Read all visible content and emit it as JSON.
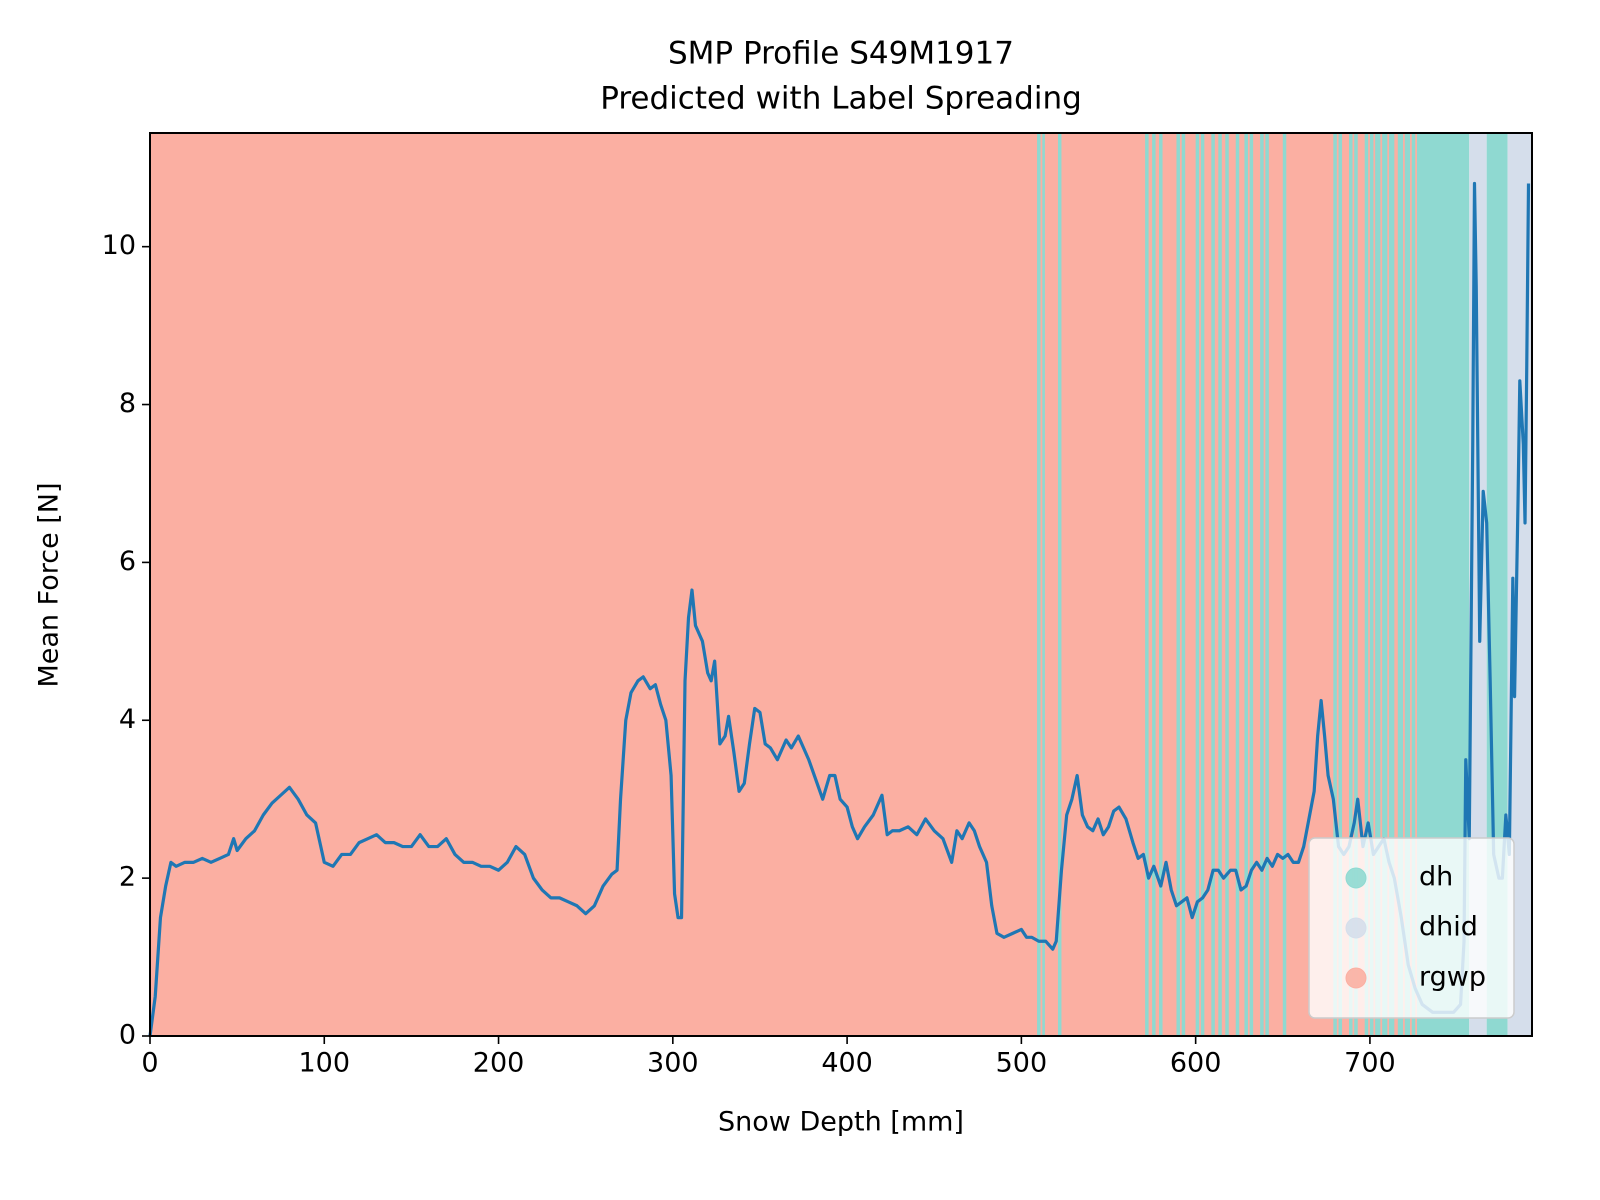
{
  "chart_data": {
    "type": "line",
    "title": "SMP Profile S49M1917",
    "subtitle": "Predicted with Label Spreading",
    "x_label": "Snow Depth [mm]",
    "y_label": "Mean Force [N]",
    "xlim": [
      0,
      793
    ],
    "ylim": [
      0,
      11.44
    ],
    "xticks": [
      0,
      100,
      200,
      300,
      400,
      500,
      600,
      700
    ],
    "yticks": [
      0,
      2,
      4,
      6,
      8,
      10
    ],
    "legend_position": "lower right",
    "classes": [
      {
        "name": "dh",
        "color": "#8fd9d1"
      },
      {
        "name": "dhid",
        "color": "#d5deeb"
      },
      {
        "name": "rgwp",
        "color": "#fbafa2"
      }
    ],
    "bands": [
      {
        "start": 0,
        "end": 727,
        "class": "rgwp"
      },
      {
        "start": 509,
        "end": 511,
        "class": "dh"
      },
      {
        "start": 512,
        "end": 513.5,
        "class": "dh"
      },
      {
        "start": 521,
        "end": 523,
        "class": "dh"
      },
      {
        "start": 571,
        "end": 573,
        "class": "dh"
      },
      {
        "start": 575,
        "end": 577,
        "class": "dh"
      },
      {
        "start": 579,
        "end": 581,
        "class": "dh"
      },
      {
        "start": 589,
        "end": 591,
        "class": "dh"
      },
      {
        "start": 592,
        "end": 594,
        "class": "dh"
      },
      {
        "start": 600,
        "end": 602,
        "class": "dh"
      },
      {
        "start": 603,
        "end": 605,
        "class": "dh"
      },
      {
        "start": 609,
        "end": 611,
        "class": "dh"
      },
      {
        "start": 613,
        "end": 615,
        "class": "dh"
      },
      {
        "start": 617,
        "end": 619,
        "class": "dh"
      },
      {
        "start": 623,
        "end": 625,
        "class": "dh"
      },
      {
        "start": 628,
        "end": 630,
        "class": "dh"
      },
      {
        "start": 631,
        "end": 633,
        "class": "dh"
      },
      {
        "start": 637,
        "end": 639,
        "class": "dh"
      },
      {
        "start": 640,
        "end": 642,
        "class": "dh"
      },
      {
        "start": 650,
        "end": 652,
        "class": "dh"
      },
      {
        "start": 679,
        "end": 681,
        "class": "dh"
      },
      {
        "start": 682,
        "end": 684,
        "class": "dh"
      },
      {
        "start": 688,
        "end": 690,
        "class": "dh"
      },
      {
        "start": 691,
        "end": 693,
        "class": "dh"
      },
      {
        "start": 697,
        "end": 699,
        "class": "dh"
      },
      {
        "start": 700,
        "end": 702,
        "class": "dh"
      },
      {
        "start": 703,
        "end": 706,
        "class": "dh"
      },
      {
        "start": 707,
        "end": 710,
        "class": "dh"
      },
      {
        "start": 711,
        "end": 714,
        "class": "dh"
      },
      {
        "start": 716,
        "end": 719,
        "class": "dh"
      },
      {
        "start": 720,
        "end": 723,
        "class": "dh"
      },
      {
        "start": 724,
        "end": 726,
        "class": "dh"
      },
      {
        "start": 727,
        "end": 757,
        "class": "dh"
      },
      {
        "start": 757,
        "end": 767,
        "class": "dhid"
      },
      {
        "start": 767,
        "end": 779,
        "class": "dh"
      },
      {
        "start": 779,
        "end": 793,
        "class": "dhid"
      }
    ],
    "line": {
      "color": "#1f77b4",
      "x": [
        0,
        3,
        6,
        9,
        12,
        15,
        20,
        25,
        30,
        35,
        40,
        45,
        48,
        50,
        55,
        60,
        65,
        70,
        75,
        80,
        85,
        90,
        95,
        98,
        100,
        105,
        110,
        115,
        120,
        125,
        130,
        135,
        140,
        145,
        150,
        155,
        160,
        165,
        170,
        175,
        180,
        185,
        190,
        195,
        200,
        205,
        210,
        215,
        220,
        225,
        230,
        235,
        240,
        245,
        250,
        255,
        260,
        265,
        268,
        270,
        273,
        276,
        280,
        283,
        287,
        290,
        293,
        296,
        299,
        301,
        303,
        305,
        307,
        309,
        311,
        313,
        317,
        320,
        322,
        324,
        327,
        330,
        332,
        335,
        338,
        341,
        344,
        347,
        350,
        353,
        356,
        360,
        365,
        368,
        372,
        375,
        378,
        382,
        386,
        390,
        393,
        396,
        400,
        403,
        406,
        410,
        415,
        420,
        423,
        426,
        430,
        435,
        440,
        445,
        450,
        455,
        460,
        463,
        466,
        470,
        473,
        476,
        480,
        483,
        486,
        490,
        495,
        500,
        503,
        506,
        510,
        514,
        518,
        520,
        523,
        526,
        529,
        532,
        535,
        538,
        541,
        544,
        547,
        550,
        553,
        556,
        560,
        564,
        567,
        570,
        573,
        576,
        580,
        583,
        586,
        589,
        592,
        595,
        598,
        601,
        604,
        607,
        610,
        613,
        616,
        620,
        623,
        626,
        629,
        632,
        635,
        638,
        641,
        644,
        647,
        650,
        653,
        656,
        659,
        662,
        665,
        668,
        670,
        672,
        674,
        676,
        679,
        682,
        685,
        688,
        691,
        693,
        696,
        699,
        702,
        705,
        708,
        711,
        714,
        718,
        722,
        726,
        730,
        736,
        742,
        748,
        752,
        754,
        755,
        757,
        759,
        760,
        761,
        763,
        765,
        767,
        769,
        771,
        774,
        776,
        778,
        780,
        782,
        783,
        785,
        786,
        788,
        789,
        790,
        791
      ],
      "values": [
        0,
        0.5,
        1.5,
        1.9,
        2.2,
        2.15,
        2.2,
        2.2,
        2.25,
        2.2,
        2.25,
        2.3,
        2.5,
        2.35,
        2.5,
        2.6,
        2.8,
        2.95,
        3.05,
        3.15,
        3.0,
        2.8,
        2.7,
        2.4,
        2.2,
        2.15,
        2.3,
        2.3,
        2.45,
        2.5,
        2.55,
        2.45,
        2.45,
        2.4,
        2.4,
        2.55,
        2.4,
        2.4,
        2.5,
        2.3,
        2.2,
        2.2,
        2.15,
        2.15,
        2.1,
        2.2,
        2.4,
        2.3,
        2.0,
        1.85,
        1.75,
        1.75,
        1.7,
        1.65,
        1.55,
        1.65,
        1.9,
        2.05,
        2.1,
        3.0,
        4.0,
        4.35,
        4.5,
        4.55,
        4.4,
        4.45,
        4.2,
        4.0,
        3.3,
        1.8,
        1.5,
        1.5,
        4.5,
        5.3,
        5.65,
        5.2,
        5.0,
        4.6,
        4.5,
        4.75,
        3.7,
        3.8,
        4.05,
        3.6,
        3.1,
        3.2,
        3.7,
        4.15,
        4.1,
        3.7,
        3.65,
        3.5,
        3.75,
        3.65,
        3.8,
        3.65,
        3.5,
        3.25,
        3.0,
        3.3,
        3.3,
        3.0,
        2.9,
        2.65,
        2.5,
        2.65,
        2.8,
        3.05,
        2.55,
        2.6,
        2.6,
        2.65,
        2.55,
        2.75,
        2.6,
        2.5,
        2.2,
        2.6,
        2.5,
        2.7,
        2.6,
        2.4,
        2.2,
        1.65,
        1.3,
        1.25,
        1.3,
        1.35,
        1.25,
        1.25,
        1.2,
        1.2,
        1.1,
        1.2,
        2.1,
        2.8,
        3.0,
        3.3,
        2.8,
        2.65,
        2.6,
        2.75,
        2.55,
        2.65,
        2.85,
        2.9,
        2.75,
        2.45,
        2.25,
        2.3,
        2.0,
        2.15,
        1.9,
        2.2,
        1.85,
        1.65,
        1.7,
        1.75,
        1.5,
        1.7,
        1.75,
        1.85,
        2.1,
        2.1,
        2.0,
        2.1,
        2.1,
        1.85,
        1.9,
        2.1,
        2.2,
        2.1,
        2.25,
        2.15,
        2.3,
        2.25,
        2.3,
        2.2,
        2.2,
        2.4,
        2.75,
        3.1,
        3.8,
        4.25,
        3.8,
        3.3,
        3.0,
        2.4,
        2.3,
        2.4,
        2.7,
        3.0,
        2.4,
        2.7,
        2.3,
        2.4,
        2.5,
        2.2,
        2.0,
        1.5,
        0.9,
        0.6,
        0.4,
        0.3,
        0.3,
        0.3,
        0.4,
        1.2,
        3.5,
        2.5,
        7.5,
        10.8,
        9.5,
        5.0,
        6.9,
        6.5,
        4.5,
        2.3,
        2.0,
        2.0,
        2.8,
        2.3,
        5.8,
        4.3,
        6.8,
        8.3,
        7.5,
        6.5,
        8.5,
        10.8
      ]
    }
  }
}
